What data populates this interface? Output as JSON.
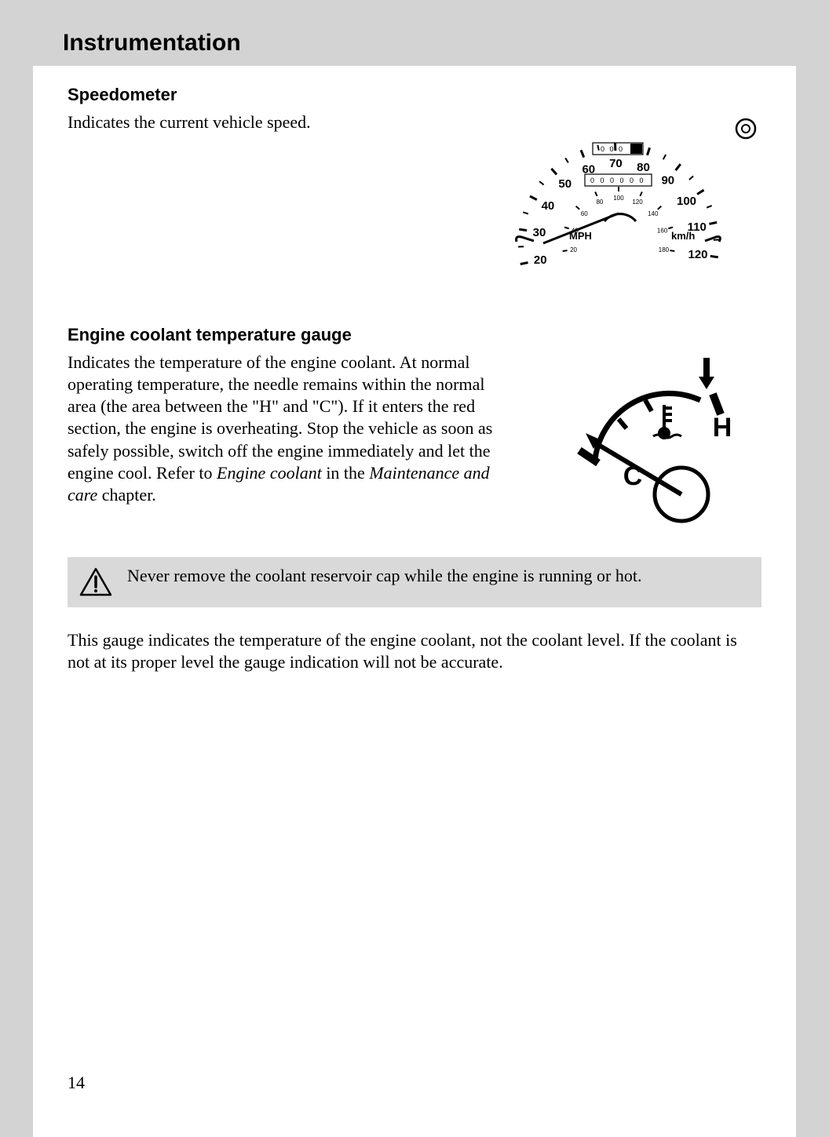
{
  "header": {
    "title": "Instrumentation"
  },
  "speedometer": {
    "heading": "Speedometer",
    "body": "Indicates the current vehicle speed.",
    "gauge": {
      "mph_numbers": [
        "20",
        "30",
        "40",
        "50",
        "60",
        "70",
        "80",
        "90",
        "100",
        "110",
        "120"
      ],
      "km_numbers": [
        "20",
        "40",
        "60",
        "80",
        "100",
        "120",
        "140",
        "160",
        "180"
      ],
      "trip": "0 0 0",
      "odo": "0 0 0 0 0 0",
      "mph_label": "MPH",
      "kmh_label": "km/h"
    }
  },
  "coolant": {
    "heading": "Engine coolant temperature gauge",
    "body_pre": "Indicates the temperature of the engine coolant. At normal operating temperature, the needle remains within the normal area (the area between the \"H\" and \"C\"). If it enters the red section, the engine is overheating. Stop the vehicle as soon as safely possible, switch off the engine immediately and let the engine cool. Refer to ",
    "body_em1": "Engine coolant",
    "body_mid": " in the ",
    "body_em2": "Maintenance and care",
    "body_post": " chapter.",
    "gauge": {
      "c": "C",
      "h": "H"
    }
  },
  "warning": {
    "text": "Never remove the coolant reservoir cap while the engine is running or hot."
  },
  "followup": "This gauge indicates the temperature of the engine coolant, not the coolant level. If the coolant is not at its proper level the gauge indication will not be accurate.",
  "page_number": "14"
}
